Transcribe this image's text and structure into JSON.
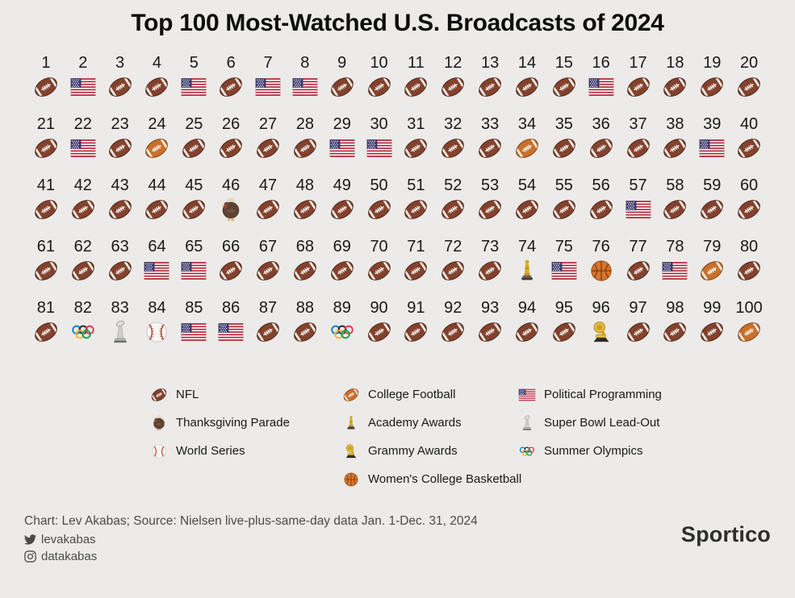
{
  "title": "Top 100 Most-Watched U.S. Broadcasts of 2024",
  "chart_data": {
    "type": "table",
    "subtype": "pictogram",
    "title": "Top 100 Most-Watched U.S. Broadcasts of 2024",
    "layout": "5 rows x 20 columns, ranks 1-100, one category icon per rank",
    "categories": {
      "nfl": {
        "label": "NFL",
        "icon": "football-icon"
      },
      "cfb": {
        "label": "College Football",
        "icon": "college-football-icon"
      },
      "flag": {
        "label": "Political Programming",
        "icon": "us-flag-icon"
      },
      "turkey": {
        "label": "Thanksgiving Parade",
        "icon": "turkey-icon"
      },
      "ws": {
        "label": "World Series",
        "icon": "baseball-icon"
      },
      "oscar": {
        "label": "Academy Awards",
        "icon": "oscar-statuette-icon"
      },
      "grammy": {
        "label": "Grammy Awards",
        "icon": "gramophone-icon"
      },
      "wcbb": {
        "label": "Women's College Basketball",
        "icon": "basketball-icon"
      },
      "sblo": {
        "label": "Super Bowl Lead-Out",
        "icon": "lombardi-trophy-icon"
      },
      "oly": {
        "label": "Summer Olympics",
        "icon": "olympic-rings-icon"
      }
    },
    "rank_codes": [
      "nfl",
      "flag",
      "nfl",
      "nfl",
      "flag",
      "nfl",
      "flag",
      "flag",
      "nfl",
      "nfl",
      "nfl",
      "nfl",
      "nfl",
      "nfl",
      "nfl",
      "flag",
      "nfl",
      "nfl",
      "nfl",
      "nfl",
      "nfl",
      "flag",
      "nfl",
      "cfb",
      "nfl",
      "nfl",
      "nfl",
      "nfl",
      "flag",
      "flag",
      "nfl",
      "nfl",
      "nfl",
      "cfb",
      "nfl",
      "nfl",
      "nfl",
      "nfl",
      "flag",
      "nfl",
      "nfl",
      "nfl",
      "nfl",
      "nfl",
      "nfl",
      "turkey",
      "nfl",
      "nfl",
      "nfl",
      "nfl",
      "nfl",
      "nfl",
      "nfl",
      "nfl",
      "nfl",
      "nfl",
      "flag",
      "nfl",
      "nfl",
      "nfl",
      "nfl",
      "nfl",
      "nfl",
      "flag",
      "flag",
      "nfl",
      "nfl",
      "nfl",
      "nfl",
      "nfl",
      "nfl",
      "nfl",
      "nfl",
      "oscar",
      "flag",
      "wcbb",
      "nfl",
      "flag",
      "cfb",
      "nfl",
      "nfl",
      "oly",
      "sblo",
      "ws",
      "flag",
      "flag",
      "nfl",
      "nfl",
      "oly",
      "nfl",
      "nfl",
      "nfl",
      "nfl",
      "nfl",
      "nfl",
      "grammy",
      "nfl",
      "nfl",
      "nfl",
      "cfb"
    ],
    "category_counts": {
      "NFL": 72,
      "Political Programming": 16,
      "College Football": 4,
      "Summer Olympics": 2,
      "Thanksgiving Parade": 1,
      "Academy Awards": 1,
      "Women's College Basketball": 1,
      "Super Bowl Lead-Out": 1,
      "World Series": 1,
      "Grammy Awards": 1
    }
  },
  "legend": {
    "columns": [
      [
        "nfl",
        "turkey",
        "ws"
      ],
      [
        "cfb",
        "oscar",
        "grammy",
        "wcbb"
      ],
      [
        "flag",
        "sblo",
        "oly"
      ]
    ]
  },
  "footer": {
    "source": "Chart: Lev Akabas; Source: Nielsen live-plus-same-day data Jan. 1-Dec. 31, 2024",
    "twitter": "levakabas",
    "instagram": "datakabas",
    "brand": "Sportico"
  },
  "colors": {
    "background": "#ECEBE9",
    "text": "#191919",
    "footer_text": "#4B4B4B",
    "nfl_ball": "#83422E",
    "college_ball": "#C9702D",
    "flag_red": "#B22234",
    "flag_blue": "#3C3B6E"
  }
}
